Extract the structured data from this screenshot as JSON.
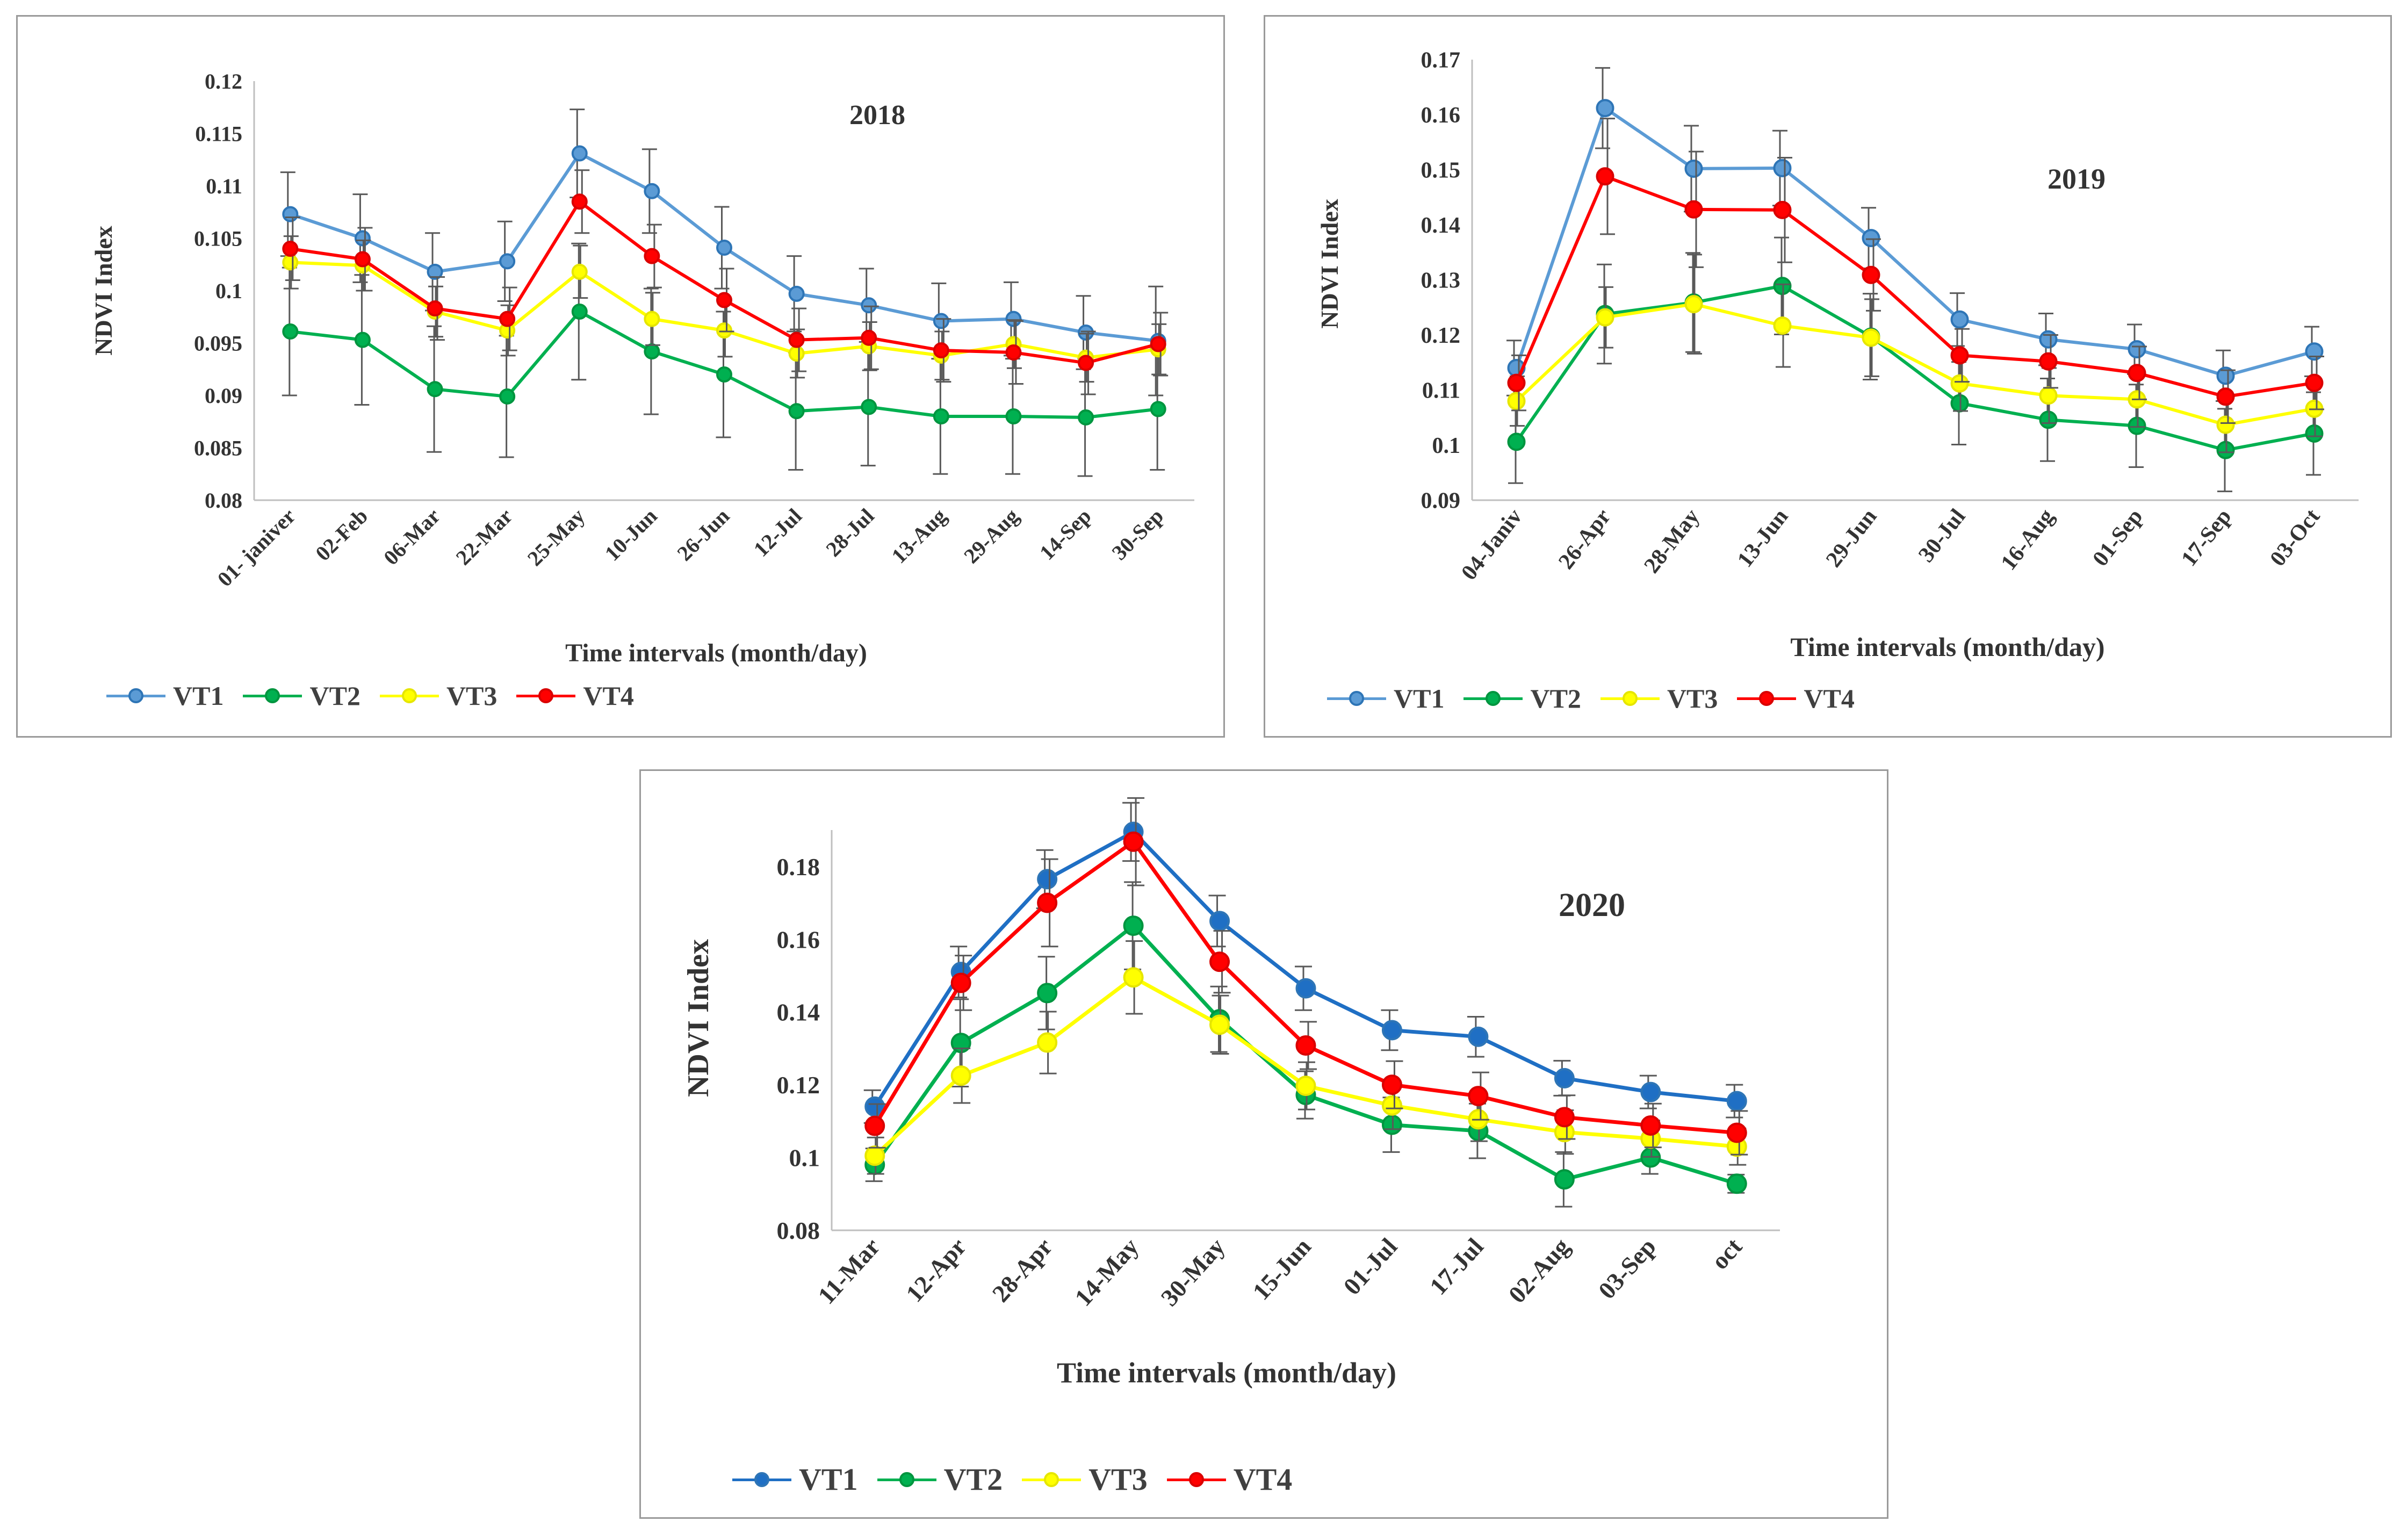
{
  "series_styles": {
    "VT1": {
      "color": "#5b9bd5",
      "marker_edge": "#2e75b6"
    },
    "VT2": {
      "color": "#00b050",
      "marker_edge": "#00953f"
    },
    "VT3": {
      "color": "#ffff00",
      "marker_edge": "#e6e600"
    },
    "VT4": {
      "color": "#ff0000",
      "marker_edge": "#d90000"
    }
  },
  "legend_labels": [
    "VT1",
    "VT2",
    "VT3",
    "VT4"
  ],
  "chart_data": [
    {
      "type": "line",
      "title": "2018",
      "xlabel": "Time intervals (month/day)",
      "ylabel": "NDVI Index",
      "ylim": [
        0.08,
        0.12
      ],
      "yticks": [
        0.08,
        0.085,
        0.09,
        0.095,
        0.1,
        0.105,
        0.11,
        0.115,
        0.12
      ],
      "ytick_labels": [
        "0.08",
        "0.085",
        "0.09",
        "0.095",
        "0.1",
        "0.105",
        "0.11",
        "0.115",
        "0.12"
      ],
      "categories": [
        "01- janiver",
        "02-Feb",
        "06-Mar",
        "22-Mar",
        "25-May",
        "10-Jun",
        "26-Jun",
        "12-Jul",
        "28-Jul",
        "13-Aug",
        "29-Aug",
        "14-Sep",
        "30-Sep"
      ],
      "legend_position": "bottom-left",
      "series": [
        {
          "name": "VT1",
          "values": [
            0.1073,
            0.105,
            0.1018,
            0.1028,
            0.1131,
            0.1095,
            0.1041,
            0.0997,
            0.0986,
            0.0971,
            0.0973,
            0.096,
            0.0952
          ],
          "errors": [
            0.004,
            0.0042,
            0.0037,
            0.0038,
            0.0042,
            0.004,
            0.0039,
            0.0036,
            0.0035,
            0.0036,
            0.0035,
            0.0035,
            0.0052
          ]
        },
        {
          "name": "VT2",
          "values": [
            0.0961,
            0.0953,
            0.0906,
            0.0899,
            0.098,
            0.0942,
            0.092,
            0.0885,
            0.0889,
            0.088,
            0.088,
            0.0879,
            0.0887
          ],
          "errors": [
            0.0061,
            0.0062,
            0.006,
            0.0058,
            0.0065,
            0.006,
            0.006,
            0.0056,
            0.0056,
            0.0055,
            0.0055,
            0.0056,
            0.0058
          ]
        },
        {
          "name": "VT3",
          "values": [
            0.1027,
            0.1024,
            0.098,
            0.0962,
            0.1018,
            0.0973,
            0.0962,
            0.094,
            0.0947,
            0.0938,
            0.0949,
            0.0936,
            0.0944
          ],
          "errors": [
            0.0025,
            0.0024,
            0.0024,
            0.0024,
            0.0025,
            0.0025,
            0.0025,
            0.0023,
            0.0023,
            0.0023,
            0.0023,
            0.0023,
            0.0024
          ]
        },
        {
          "name": "VT4",
          "values": [
            0.104,
            0.103,
            0.0983,
            0.0973,
            0.1085,
            0.1033,
            0.0991,
            0.0953,
            0.0955,
            0.0943,
            0.0941,
            0.0931,
            0.0949
          ],
          "errors": [
            0.003,
            0.003,
            0.003,
            0.003,
            0.003,
            0.003,
            0.003,
            0.003,
            0.003,
            0.003,
            0.003,
            0.003,
            0.003
          ]
        }
      ]
    },
    {
      "type": "line",
      "title": "2019",
      "xlabel": "Time intervals (month/day)",
      "ylabel": "NDVI Index",
      "ylim": [
        0.09,
        0.17
      ],
      "yticks": [
        0.09,
        0.1,
        0.11,
        0.12,
        0.13,
        0.14,
        0.15,
        0.16,
        0.17
      ],
      "ytick_labels": [
        "0.09",
        "0.1",
        "0.11",
        "0.12",
        "0.13",
        "0.14",
        "0.15",
        "0.16",
        "0.17"
      ],
      "categories": [
        "04-Janiv",
        "26-Apr",
        "28-May",
        "13-Jun",
        "29-Jun",
        "30-Jul",
        "16-Aug",
        "01-Sep",
        "17-Sep",
        "03-Oct"
      ],
      "legend_position": "bottom-left",
      "series": [
        {
          "name": "VT1",
          "values": [
            0.114,
            0.1612,
            0.1502,
            0.1503,
            0.1376,
            0.1228,
            0.1192,
            0.1174,
            0.1126,
            0.117
          ],
          "errors": [
            0.005,
            0.0073,
            0.0078,
            0.0068,
            0.0055,
            0.0048,
            0.0047,
            0.0045,
            0.0046,
            0.0045
          ]
        },
        {
          "name": "VT2",
          "values": [
            0.1006,
            0.1238,
            0.1259,
            0.1289,
            0.1197,
            0.1076,
            0.1046,
            0.1035,
            0.0991,
            0.1021
          ],
          "errors": [
            0.0075,
            0.009,
            0.009,
            0.0088,
            0.0078,
            0.0075,
            0.0075,
            0.0075,
            0.0075,
            0.0075
          ]
        },
        {
          "name": "VT3",
          "values": [
            0.108,
            0.1232,
            0.1256,
            0.1217,
            0.1195,
            0.1112,
            0.109,
            0.1083,
            0.1037,
            0.1066
          ],
          "errors": [
            0.0045,
            0.0055,
            0.009,
            0.0075,
            0.007,
            0.005,
            0.005,
            0.005,
            0.005,
            0.005
          ]
        },
        {
          "name": "VT4",
          "values": [
            0.1113,
            0.1488,
            0.1428,
            0.1427,
            0.1309,
            0.1163,
            0.1152,
            0.1131,
            0.1088,
            0.1113
          ],
          "errors": [
            0.005,
            0.0105,
            0.0105,
            0.0095,
            0.0065,
            0.0048,
            0.0048,
            0.0048,
            0.0048,
            0.0048
          ]
        }
      ]
    },
    {
      "type": "line",
      "title": "2020",
      "xlabel": "Time intervals (month/day)",
      "ylabel": "NDVI Index",
      "ylim": [
        0.08,
        0.19
      ],
      "yticks": [
        0.08,
        0.1,
        0.12,
        0.14,
        0.16,
        0.18
      ],
      "ytick_labels": [
        "0.08",
        "0.1",
        "0.12",
        "0.14",
        "0.16",
        "0.18"
      ],
      "categories": [
        "11-Mar",
        "12-Apr",
        "28-Apr",
        "14-May",
        "30-May",
        "15-Jun",
        "01-Jul",
        "17-Jul",
        "02-Aug",
        "03-Sep",
        "oct"
      ],
      "legend_position": "bottom-left",
      "series_colors": {
        "VT1": "#1f6fc4"
      },
      "series": [
        {
          "name": "VT1",
          "values": [
            0.114,
            0.151,
            0.1765,
            0.1895,
            0.165,
            0.1465,
            0.135,
            0.1332,
            0.1218,
            0.118,
            0.1155
          ],
          "errors": [
            0.0045,
            0.007,
            0.008,
            0.008,
            0.007,
            0.006,
            0.0055,
            0.0055,
            0.0048,
            0.0045,
            0.0045
          ]
        },
        {
          "name": "VT2",
          "values": [
            0.098,
            0.1315,
            0.1452,
            0.1637,
            0.138,
            0.1172,
            0.109,
            0.1073,
            0.094,
            0.1,
            0.0928
          ],
          "errors": [
            0.0045,
            0.012,
            0.01,
            0.012,
            0.009,
            0.0065,
            0.0075,
            0.0075,
            0.0075,
            0.0045,
            0.0025
          ]
        },
        {
          "name": "VT3",
          "values": [
            0.1005,
            0.1225,
            0.1316,
            0.1495,
            0.1365,
            0.1197,
            0.1143,
            0.1105,
            0.107,
            0.1052,
            0.103
          ],
          "errors": [
            0.005,
            0.0075,
            0.0085,
            0.01,
            0.008,
            0.0065,
            0.0065,
            0.006,
            0.006,
            0.005,
            0.005
          ]
        },
        {
          "name": "VT4",
          "values": [
            0.1087,
            0.148,
            0.17,
            0.1868,
            0.1538,
            0.1308,
            0.12,
            0.1169,
            0.1111,
            0.1088,
            0.1068
          ],
          "errors": [
            0.006,
            0.0075,
            0.012,
            0.012,
            0.0085,
            0.0065,
            0.0065,
            0.0065,
            0.006,
            0.006,
            0.006
          ]
        }
      ]
    }
  ]
}
